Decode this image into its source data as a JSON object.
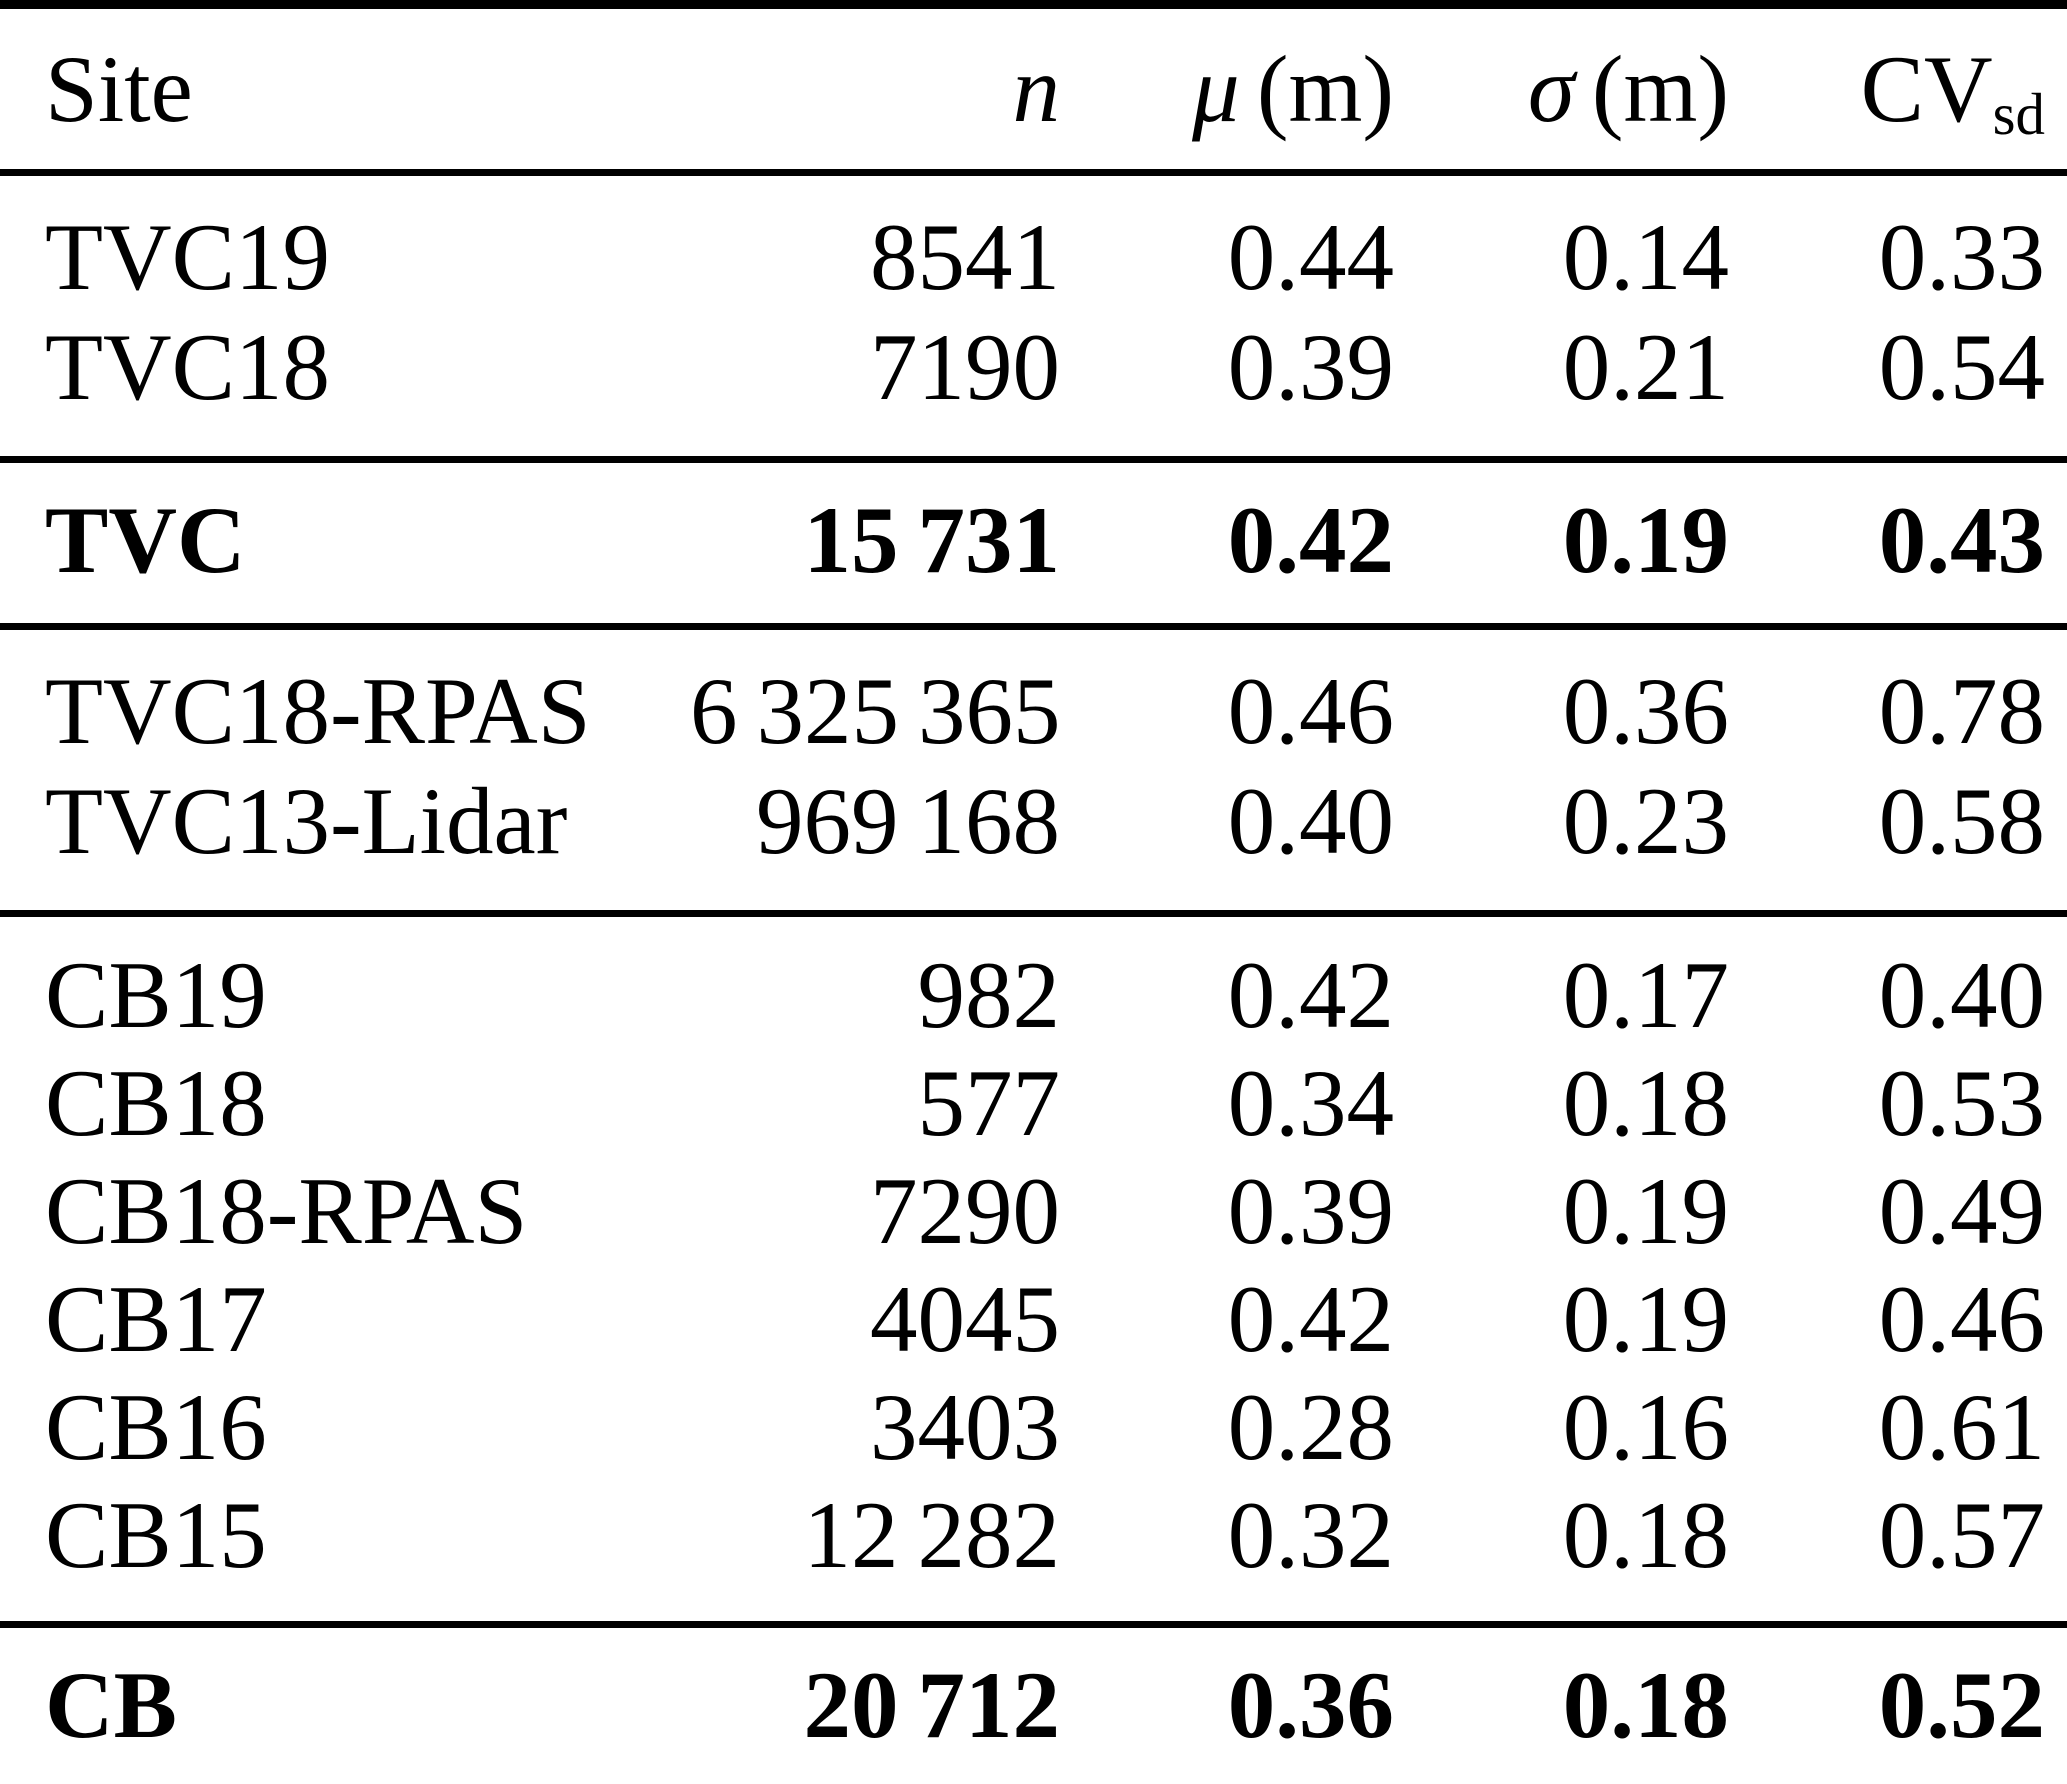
{
  "table": {
    "header": {
      "site": "Site",
      "n": "n",
      "mu_symbol": "μ",
      "sigma_symbol": "σ",
      "unit": "(m)",
      "cv": "CV",
      "cv_sub": "sd"
    },
    "rows": [
      {
        "site": "TVC19",
        "n": "8541",
        "mu": "0.44",
        "sigma": "0.14",
        "cv": "0.33",
        "bold": false
      },
      {
        "site": "TVC18",
        "n": "7190",
        "mu": "0.39",
        "sigma": "0.21",
        "cv": "0.54",
        "bold": false
      },
      {
        "site": "TVC",
        "n": "15 731",
        "mu": "0.42",
        "sigma": "0.19",
        "cv": "0.43",
        "bold": true
      },
      {
        "site": "TVC18-RPAS",
        "n": "6 325 365",
        "mu": "0.46",
        "sigma": "0.36",
        "cv": "0.78",
        "bold": false
      },
      {
        "site": "TVC13-Lidar",
        "n": "969 168",
        "mu": "0.40",
        "sigma": "0.23",
        "cv": "0.58",
        "bold": false
      },
      {
        "site": "CB19",
        "n": "982",
        "mu": "0.42",
        "sigma": "0.17",
        "cv": "0.40",
        "bold": false
      },
      {
        "site": "CB18",
        "n": "577",
        "mu": "0.34",
        "sigma": "0.18",
        "cv": "0.53",
        "bold": false
      },
      {
        "site": "CB18-RPAS",
        "n": "7290",
        "mu": "0.39",
        "sigma": "0.19",
        "cv": "0.49",
        "bold": false
      },
      {
        "site": "CB17",
        "n": "4045",
        "mu": "0.42",
        "sigma": "0.19",
        "cv": "0.46",
        "bold": false
      },
      {
        "site": "CB16",
        "n": "3403",
        "mu": "0.28",
        "sigma": "0.16",
        "cv": "0.61",
        "bold": false
      },
      {
        "site": "CB15",
        "n": "12 282",
        "mu": "0.32",
        "sigma": "0.18",
        "cv": "0.57",
        "bold": false
      },
      {
        "site": "CB",
        "n": "20 712",
        "mu": "0.36",
        "sigma": "0.18",
        "cv": "0.52",
        "bold": true
      }
    ],
    "text_color": "#000000",
    "background_color": "#ffffff"
  }
}
